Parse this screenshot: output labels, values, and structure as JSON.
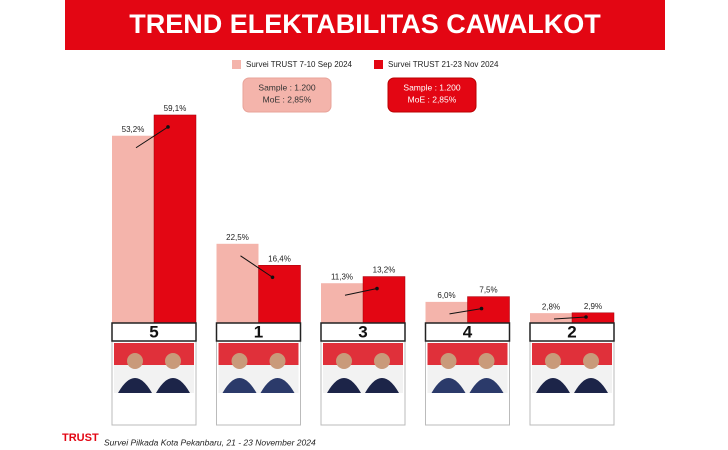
{
  "chart_data": {
    "type": "bar",
    "title": "TREND ELEKTABILITAS CAWALKOT",
    "categories": [
      "5",
      "1",
      "3",
      "4",
      "2"
    ],
    "series": [
      {
        "name": "Survei TRUST 7-10 Sep 2024",
        "color": "#f4b4ab",
        "values": [
          53.2,
          22.5,
          11.3,
          6.0,
          2.8
        ],
        "value_labels": [
          "53,2%",
          "22,5%",
          "11,3%",
          "6,0%",
          "2,8%"
        ]
      },
      {
        "name": "Survei TRUST 21-23 Nov 2024",
        "color": "#e30613",
        "values": [
          59.1,
          16.4,
          13.2,
          7.5,
          2.9
        ],
        "value_labels": [
          "59,1%",
          "16,4%",
          "13,2%",
          "7,5%",
          "2,9%"
        ]
      }
    ],
    "annotations": [
      {
        "lines": [
          "Sample : 1.200",
          "MoE : 2,85%"
        ],
        "color": "#f4b4ab"
      },
      {
        "lines": [
          "Sample : 1.200",
          "MoE : 2,85%"
        ],
        "color": "#e30613"
      }
    ],
    "logo": "TRUST",
    "source": "Survei Pilkada Kota Pekanbaru, 21 - 23 November 2024"
  }
}
